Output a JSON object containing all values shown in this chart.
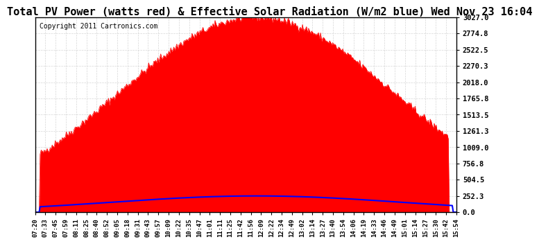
{
  "title": "Total PV Power (watts red) & Effective Solar Radiation (W/m2 blue) Wed Nov 23 16:04",
  "copyright_text": "Copyright 2011 Cartronics.com",
  "yticks": [
    0.0,
    252.3,
    504.5,
    756.8,
    1009.0,
    1261.3,
    1513.5,
    1765.8,
    2018.0,
    2270.3,
    2522.5,
    2774.8,
    3027.0
  ],
  "ymax": 3027.0,
  "ymin": 0.0,
  "bg_color": "#ffffff",
  "plot_bg_color": "#ffffff",
  "grid_color": "#cccccc",
  "fill_color": "#ff0000",
  "line_color_blue": "#0000ff",
  "xtick_labels": [
    "07:20",
    "07:33",
    "07:45",
    "07:59",
    "08:11",
    "08:25",
    "08:40",
    "08:52",
    "09:05",
    "09:18",
    "09:31",
    "09:43",
    "09:57",
    "10:09",
    "10:22",
    "10:35",
    "10:47",
    "11:01",
    "11:11",
    "11:25",
    "11:42",
    "11:56",
    "12:09",
    "12:22",
    "12:34",
    "12:49",
    "13:02",
    "13:14",
    "13:27",
    "13:40",
    "13:54",
    "14:06",
    "14:19",
    "14:33",
    "14:46",
    "14:49",
    "15:01",
    "15:14",
    "15:27",
    "15:30",
    "15:42",
    "15:54"
  ],
  "title_fontsize": 11,
  "copyright_fontsize": 7,
  "tick_fontsize": 6.5,
  "ytick_fontsize": 7.5
}
